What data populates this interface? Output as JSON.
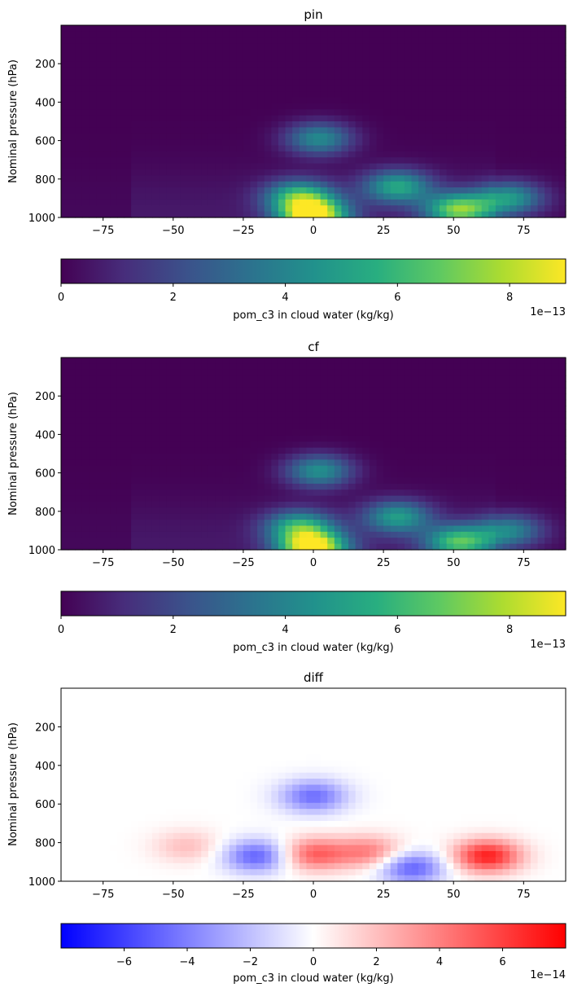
{
  "chart_data": [
    {
      "type": "heatmap",
      "title": "pin",
      "xlabel": "",
      "ylabel": "Nominal pressure (hPa)",
      "xlim": [
        -90,
        90
      ],
      "ylim": [
        1000,
        0
      ],
      "xticks": [
        -75,
        -50,
        -25,
        0,
        25,
        50,
        75
      ],
      "yticks": [
        200,
        400,
        600,
        800,
        1000
      ],
      "colormap": "viridis",
      "colorbar": {
        "label": "pom_c3 in cloud water (kg/kg)",
        "range": [
          0,
          9e-13
        ],
        "ticks": [
          0,
          2,
          4,
          6,
          8
        ],
        "offset_text": "1e−13",
        "orientation": "horizontal"
      },
      "features": [
        {
          "lat": 0,
          "p": 990,
          "value": 9e-13
        },
        {
          "lat": -5,
          "p": 890,
          "value": 5.5e-13
        },
        {
          "lat": 2,
          "p": 590,
          "value": 4.2e-13
        },
        {
          "lat": 30,
          "p": 840,
          "value": 5e-13
        },
        {
          "lat": 52,
          "p": 960,
          "value": 6.8e-13
        },
        {
          "lat": 70,
          "p": 900,
          "value": 4.5e-13
        }
      ]
    },
    {
      "type": "heatmap",
      "title": "cf",
      "xlabel": "",
      "ylabel": "Nominal pressure (hPa)",
      "xlim": [
        -90,
        90
      ],
      "ylim": [
        1000,
        0
      ],
      "xticks": [
        -75,
        -50,
        -25,
        0,
        25,
        50,
        75
      ],
      "yticks": [
        200,
        400,
        600,
        800,
        1000
      ],
      "colormap": "viridis",
      "colorbar": {
        "label": "pom_c3 in cloud water (kg/kg)",
        "range": [
          0,
          9e-13
        ],
        "ticks": [
          0,
          2,
          4,
          6,
          8
        ],
        "offset_text": "1e−13",
        "orientation": "horizontal"
      },
      "features": [
        {
          "lat": 0,
          "p": 990,
          "value": 9e-13
        },
        {
          "lat": -5,
          "p": 880,
          "value": 5.2e-13
        },
        {
          "lat": 2,
          "p": 590,
          "value": 4.4e-13
        },
        {
          "lat": 30,
          "p": 830,
          "value": 4.6e-13
        },
        {
          "lat": 52,
          "p": 960,
          "value": 6e-13
        },
        {
          "lat": 70,
          "p": 900,
          "value": 3.8e-13
        }
      ]
    },
    {
      "type": "heatmap",
      "title": "diff",
      "xlabel": "",
      "ylabel": "Nominal pressure (hPa)",
      "xlim": [
        -90,
        90
      ],
      "ylim": [
        1000,
        0
      ],
      "xticks": [
        -75,
        -50,
        -25,
        0,
        25,
        50,
        75
      ],
      "yticks": [
        200,
        400,
        600,
        800,
        1000
      ],
      "colormap": "bwr",
      "colorbar": {
        "label": "pom_c3 in cloud water (kg/kg)",
        "range": [
          -8e-14,
          8e-14
        ],
        "ticks": [
          -6,
          -4,
          -2,
          0,
          2,
          4,
          6
        ],
        "offset_text": "1e−14",
        "orientation": "horizontal"
      },
      "features": [
        {
          "lat": 62,
          "p": 870,
          "value": 7e-14
        },
        {
          "lat": -20,
          "p": 870,
          "value": -5e-14
        },
        {
          "lat": 0,
          "p": 560,
          "value": -4.5e-14
        },
        {
          "lat": 35,
          "p": 930,
          "value": -5e-14
        },
        {
          "lat": 0,
          "p": 860,
          "value": 5e-14
        },
        {
          "lat": -45,
          "p": 820,
          "value": 2e-14
        },
        {
          "lat": 20,
          "p": 850,
          "value": 4e-14
        }
      ]
    }
  ]
}
